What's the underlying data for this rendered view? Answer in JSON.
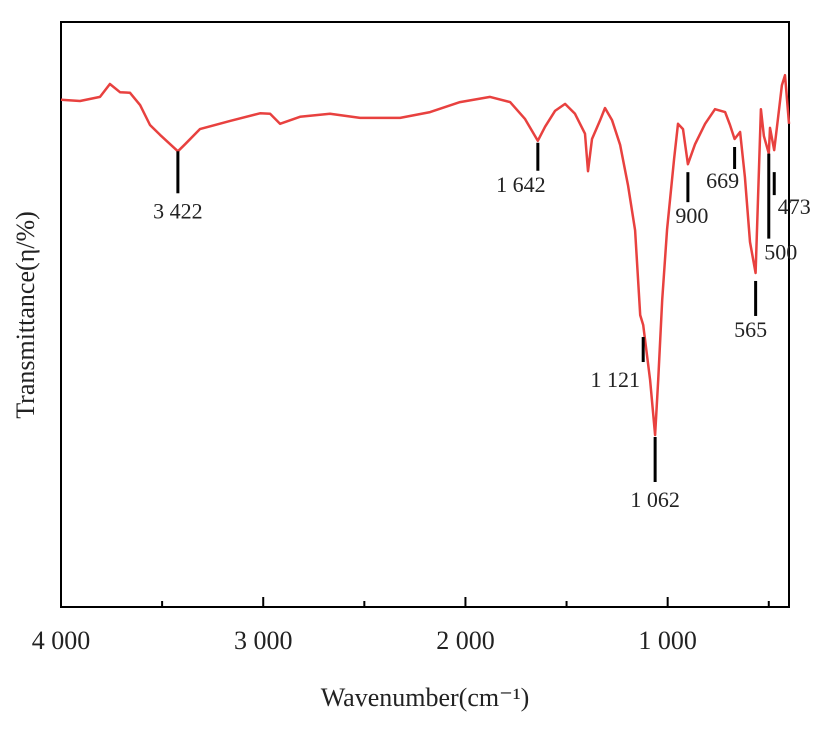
{
  "chart_data": {
    "type": "line",
    "x_label": "Wavenumber(cm⁻¹)",
    "y_label": "Transmittance(η/%)",
    "xlim": [
      4000,
      400
    ],
    "ylim": [
      0,
      100
    ],
    "xticks": [
      {
        "value": 4000,
        "label": "4 000"
      },
      {
        "value": 3000,
        "label": "3 000"
      },
      {
        "value": 2000,
        "label": "2 000"
      },
      {
        "value": 1000,
        "label": "1 000"
      }
    ],
    "xminor_ticks": [
      3500,
      2500,
      1500,
      500
    ],
    "x": [
      4000,
      3906,
      3807,
      3758,
      3708,
      3659,
      3609,
      3560,
      3510,
      3422,
      3387,
      3313,
      3164,
      3016,
      2966,
      2917,
      2818,
      2670,
      2521,
      2323,
      2175,
      2027,
      1878,
      1779,
      1705,
      1642,
      1606,
      1557,
      1507,
      1458,
      1409,
      1394,
      1374,
      1334,
      1310,
      1275,
      1235,
      1196,
      1161,
      1136,
      1121,
      1087,
      1062,
      1047,
      1027,
      1003,
      968,
      949,
      924,
      900,
      865,
      815,
      766,
      716,
      692,
      669,
      642,
      618,
      593,
      565,
      554,
      539,
      524,
      500,
      494,
      473,
      455,
      435,
      420,
      400
    ],
    "series": [
      {
        "color": "#e8413f",
        "values": [
          86.7,
          86.5,
          87.2,
          89.4,
          88.0,
          87.9,
          85.8,
          82.4,
          80.7,
          77.9,
          79.1,
          81.7,
          83.1,
          84.4,
          84.3,
          82.6,
          83.8,
          84.3,
          83.6,
          83.6,
          84.6,
          86.3,
          87.2,
          86.3,
          83.4,
          79.7,
          82.1,
          84.8,
          86.0,
          84.3,
          80.9,
          74.5,
          80.0,
          83.2,
          85.3,
          83.2,
          79.0,
          72.1,
          64.4,
          49.9,
          48.2,
          38.8,
          29.4,
          38.8,
          52.5,
          64.6,
          76.6,
          82.6,
          81.7,
          75.7,
          79.1,
          82.6,
          85.1,
          84.6,
          82.4,
          80.0,
          81.2,
          73.5,
          62.4,
          57.1,
          69.2,
          85.1,
          80.5,
          77.5,
          81.9,
          78.1,
          83.4,
          89.2,
          90.9,
          82.6
        ]
      }
    ],
    "annotations": [
      {
        "x": 3422,
        "label": "3 422"
      },
      {
        "x": 1642,
        "label": "1 642"
      },
      {
        "x": 1121,
        "label": "1 121"
      },
      {
        "x": 1062,
        "label": "1 062"
      },
      {
        "x": 900,
        "label": "900"
      },
      {
        "x": 669,
        "label": "669"
      },
      {
        "x": 565,
        "label": "565"
      },
      {
        "x": 500,
        "label": "500"
      },
      {
        "x": 473,
        "label": "473"
      }
    ]
  }
}
